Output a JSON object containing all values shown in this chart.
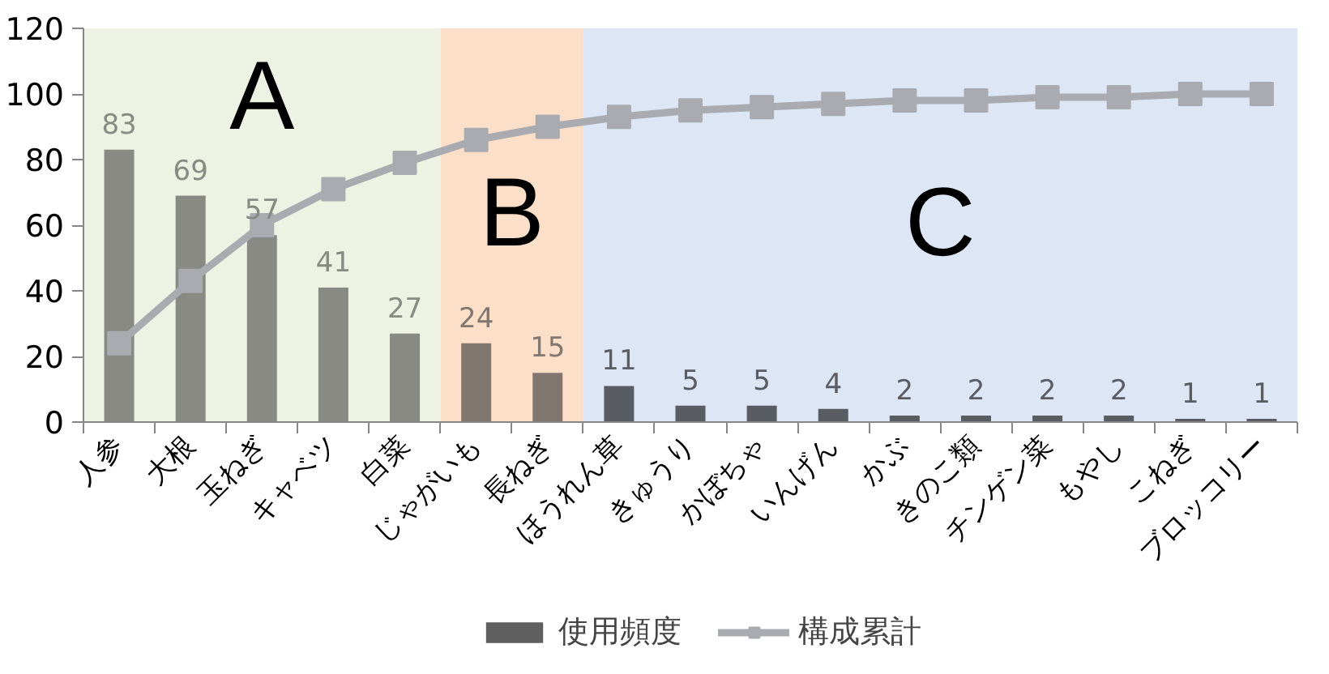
{
  "chart_data": {
    "type": "bar",
    "categories": [
      "人参",
      "大根",
      "玉ねぎ",
      "キャベツ",
      "白菜",
      "じゃがいも",
      "長ねぎ",
      "ほうれん草",
      "きゅうり",
      "かぼちゃ",
      "いんげん",
      "かぶ",
      "きのこ類",
      "チンゲン菜",
      "もやし",
      "こねぎ",
      "ブロッコリー"
    ],
    "series": [
      {
        "name": "使用頻度",
        "color": "#5f5f5f",
        "colors": [
          "#8a8a84",
          "#8a8a84",
          "#8a8a84",
          "#8a8a84",
          "#8a8a84",
          "#827670",
          "#827670",
          "#5a5c63",
          "#5a5c63",
          "#5a5c63",
          "#5a5c63",
          "#5a5c63",
          "#5a5c63",
          "#5a5c63",
          "#5a5c63",
          "#5a5c63",
          "#5a5c63"
        ],
        "values": [
          83,
          69,
          57,
          41,
          27,
          24,
          15,
          11,
          5,
          5,
          4,
          2,
          2,
          2,
          2,
          1,
          1
        ],
        "data_labels": true
      },
      {
        "name": "構成累計",
        "type": "line",
        "color": "#a9abb0",
        "marker": "square",
        "values": [
          24,
          43,
          60,
          71,
          79,
          86,
          90,
          93,
          95,
          96,
          97,
          98,
          98,
          99,
          99,
          100,
          100
        ]
      }
    ],
    "ylim": [
      0,
      120
    ],
    "yticks": [
      0,
      20,
      40,
      60,
      80,
      100,
      120
    ],
    "bands": [
      {
        "axis": "x",
        "from": "人参",
        "to": "白菜",
        "label": "A",
        "color": "#edf2e3"
      },
      {
        "axis": "x",
        "from": "じゃがいも",
        "to": "長ねぎ",
        "label": "B",
        "color": "#fbdfc9"
      },
      {
        "axis": "x",
        "from": "ほうれん草",
        "to": "ブロッコリー",
        "label": "C",
        "color": "#dce6f5"
      }
    ],
    "legend": "bottom"
  }
}
